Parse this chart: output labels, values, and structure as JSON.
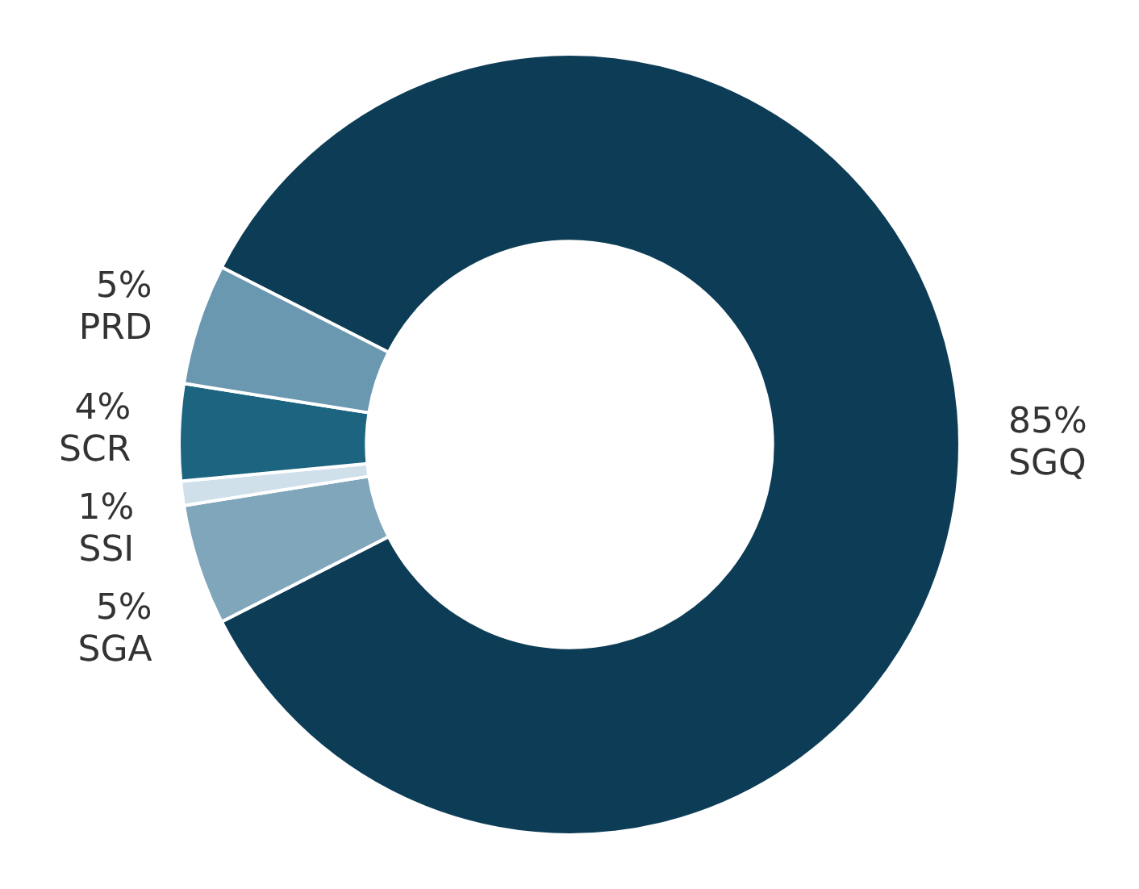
{
  "chart_data": {
    "type": "donut",
    "categories": [
      "SGQ",
      "SGA",
      "SSI",
      "SCR",
      "PRD"
    ],
    "values": [
      85,
      5,
      1,
      4,
      5
    ],
    "value_labels": [
      "85%",
      "5%",
      "1%",
      "4%",
      "5%"
    ],
    "colors": [
      "#0d3d56",
      "#7fa6ba",
      "#d0e0ea",
      "#1c6480",
      "#6a98b0"
    ]
  }
}
